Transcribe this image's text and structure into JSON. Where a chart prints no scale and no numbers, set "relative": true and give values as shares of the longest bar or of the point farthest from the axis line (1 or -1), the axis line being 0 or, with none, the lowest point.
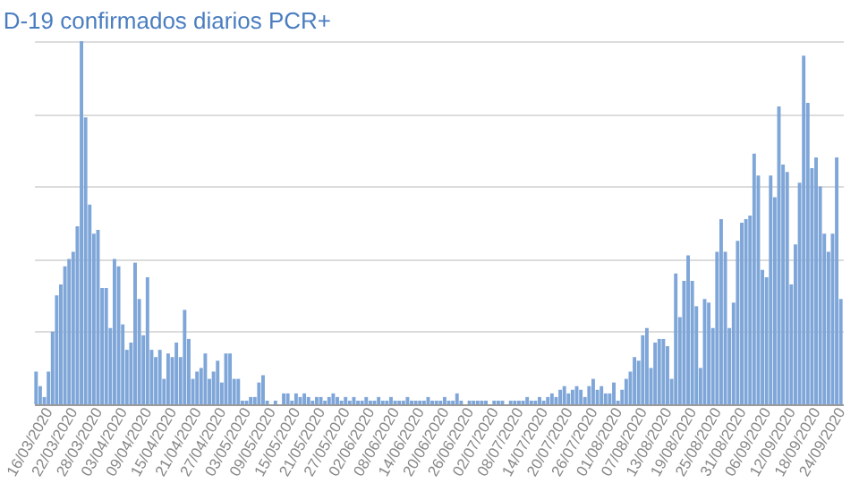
{
  "chart_data": {
    "type": "bar",
    "title": "D-19 confirmados diarios PCR+",
    "relative": true,
    "grid": "y",
    "color": "#7fa6d8",
    "categories": [
      null,
      null,
      null,
      "16/03/2020",
      null,
      null,
      null,
      null,
      null,
      "22/03/2020",
      null,
      null,
      null,
      null,
      null,
      "28/03/2020",
      null,
      null,
      null,
      null,
      null,
      "03/04/2020",
      null,
      null,
      null,
      null,
      null,
      "09/04/2020",
      null,
      null,
      null,
      null,
      null,
      "15/04/2020",
      null,
      null,
      null,
      null,
      null,
      "21/04/2020",
      null,
      null,
      null,
      null,
      null,
      "27/04/2020",
      null,
      null,
      null,
      null,
      null,
      "03/05/2020",
      null,
      null,
      null,
      null,
      null,
      "09/05/2020",
      null,
      null,
      null,
      null,
      null,
      "15/05/2020",
      null,
      null,
      null,
      null,
      null,
      "21/05/2020",
      null,
      null,
      null,
      null,
      null,
      "27/05/2020",
      null,
      null,
      null,
      null,
      null,
      "02/06/2020",
      null,
      null,
      null,
      null,
      null,
      "08/06/2020",
      null,
      null,
      null,
      null,
      null,
      "14/06/2020",
      null,
      null,
      null,
      null,
      null,
      "20/06/2020",
      null,
      null,
      null,
      null,
      null,
      "26/06/2020",
      null,
      null,
      null,
      null,
      null,
      "02/07/2020",
      null,
      null,
      null,
      null,
      null,
      "08/07/2020",
      null,
      null,
      null,
      null,
      null,
      "14/07/2020",
      null,
      null,
      null,
      null,
      null,
      "20/07/2020",
      null,
      null,
      null,
      null,
      null,
      "26/07/2020",
      null,
      null,
      null,
      null,
      null,
      "01/08/2020",
      null,
      null,
      null,
      null,
      null,
      "07/08/2020",
      null,
      null,
      null,
      null,
      null,
      "13/08/2020",
      null,
      null,
      null,
      null,
      null,
      "19/08/2020",
      null,
      null,
      null,
      null,
      null,
      "25/08/2020",
      null,
      null,
      null,
      null,
      null,
      "31/08/2020",
      null,
      null,
      null,
      null,
      null,
      "06/09/2020",
      null,
      null,
      null,
      null,
      null,
      "12/09/2020",
      null,
      null,
      null,
      null,
      null,
      "18/09/2020",
      null,
      null,
      null,
      null,
      null,
      "24/09/2020"
    ],
    "values": [
      0.09,
      0.05,
      0.02,
      0.09,
      0.2,
      0.3,
      0.33,
      0.38,
      0.4,
      0.42,
      0.49,
      1.0,
      0.79,
      0.55,
      0.47,
      0.48,
      0.32,
      0.32,
      0.21,
      0.4,
      0.38,
      0.22,
      0.15,
      0.17,
      0.39,
      0.29,
      0.19,
      0.35,
      0.15,
      0.13,
      0.15,
      0.07,
      0.14,
      0.13,
      0.17,
      0.13,
      0.26,
      0.18,
      0.07,
      0.09,
      0.1,
      0.14,
      0.07,
      0.09,
      0.12,
      0.06,
      0.14,
      0.14,
      0.07,
      0.07,
      0.01,
      0.01,
      0.02,
      0.02,
      0.06,
      0.08,
      0.01,
      null,
      0.01,
      null,
      0.03,
      0.03,
      0.01,
      0.03,
      0.02,
      0.03,
      0.02,
      0.01,
      0.02,
      0.02,
      0.01,
      0.02,
      0.03,
      0.02,
      0.01,
      0.02,
      0.01,
      0.02,
      0.01,
      0.01,
      0.02,
      0.01,
      0.01,
      0.02,
      0.01,
      0.01,
      0.02,
      0.01,
      0.01,
      0.01,
      0.02,
      0.01,
      0.01,
      0.01,
      0.01,
      0.02,
      0.01,
      0.01,
      0.01,
      0.02,
      0.01,
      0.01,
      0.03,
      0.01,
      null,
      0.01,
      0.01,
      0.01,
      0.01,
      0.01,
      null,
      0.01,
      0.01,
      0.01,
      null,
      0.01,
      0.01,
      0.01,
      0.01,
      0.02,
      0.01,
      0.01,
      0.02,
      0.01,
      0.02,
      0.03,
      0.02,
      0.04,
      0.05,
      0.03,
      0.04,
      0.05,
      0.04,
      0.02,
      0.05,
      0.07,
      0.04,
      0.05,
      0.03,
      0.03,
      0.06,
      0.01,
      0.04,
      0.07,
      0.09,
      0.13,
      0.12,
      0.19,
      0.21,
      0.1,
      0.17,
      0.18,
      0.18,
      0.16,
      0.07,
      0.36,
      0.24,
      0.34,
      0.41,
      0.34,
      0.27,
      0.1,
      0.29,
      0.28,
      0.21,
      0.42,
      0.51,
      0.42,
      0.21,
      0.28,
      0.45,
      0.5,
      0.51,
      0.52,
      0.69,
      0.63,
      0.37,
      0.35,
      0.63,
      0.57,
      0.82,
      0.66,
      0.64,
      0.33,
      0.44,
      0.61,
      0.96,
      0.83,
      0.65,
      0.68,
      0.6,
      0.47,
      0.42,
      0.47,
      0.68,
      0.29
    ]
  }
}
